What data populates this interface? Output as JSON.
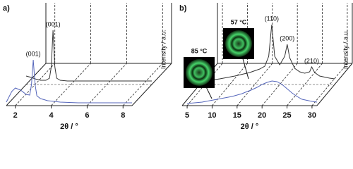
{
  "chart_data": [
    {
      "type": "line",
      "label": "a)",
      "xlabel": "2θ / °",
      "ylabel": "Intensity / a.u.",
      "xlim": [
        1.5,
        8.5
      ],
      "xticks": [
        2,
        4,
        6,
        8
      ],
      "ylim": [
        0,
        10
      ],
      "x": [
        1.5,
        1.8,
        2.0,
        2.3,
        2.6,
        2.8,
        2.9,
        3.0,
        3.1,
        3.2,
        3.4,
        3.8,
        4.5,
        5.5,
        6.5,
        7.5,
        8.5
      ],
      "series": [
        {
          "color": "#333333",
          "values": [
            1.2,
            1.0,
            0.8,
            0.6,
            0.6,
            0.9,
            2.5,
            7.7,
            2.5,
            0.9,
            0.6,
            0.5,
            0.5,
            0.5,
            0.5,
            0.5,
            0.5
          ],
          "annotations": [
            {
              "text": "(001)",
              "x": 3.0
            }
          ]
        },
        {
          "color": "#5566bb",
          "values": [
            0.5,
            2.0,
            2.5,
            2.2,
            1.6,
            1.5,
            3.0,
            6.5,
            3.0,
            1.4,
            1.0,
            0.7,
            0.5,
            0.4,
            0.4,
            0.4,
            0.4
          ],
          "annotations": [
            {
              "text": "(001)",
              "x": 3.0
            }
          ]
        }
      ]
    },
    {
      "type": "line",
      "label": "b)",
      "xlabel": "2θ / °",
      "ylabel": "Intensity / a.u.",
      "xlim": [
        4,
        31
      ],
      "xticks": [
        5,
        10,
        15,
        20,
        25,
        30
      ],
      "ylim": [
        0,
        10
      ],
      "x": [
        5,
        8,
        11,
        14,
        16,
        17,
        17.8,
        18.4,
        19,
        20,
        21,
        21.5,
        22,
        23,
        24,
        25,
        26,
        26.4,
        27,
        28,
        30,
        31
      ],
      "series": [
        {
          "color": "#333333",
          "values": [
            0.5,
            0.8,
            1.2,
            1.7,
            2.2,
            2.6,
            4.0,
            8.5,
            4.0,
            2.8,
            4.0,
            5.7,
            3.8,
            2.3,
            1.8,
            1.6,
            1.8,
            2.5,
            1.7,
            1.2,
            0.9,
            0.8
          ],
          "annotations": [
            {
              "text": "(110)",
              "x": 18.4
            },
            {
              "text": "(200)",
              "x": 21.5
            },
            {
              "text": "(210)",
              "x": 26.4
            }
          ]
        },
        {
          "color": "#5566bb",
          "values": [
            0.3,
            0.5,
            0.9,
            1.3,
            1.7,
            2.0,
            2.2,
            2.4,
            2.6,
            3.0,
            3.3,
            3.4,
            3.5,
            3.4,
            3.0,
            2.4,
            1.8,
            1.6,
            1.3,
            0.9,
            0.6,
            0.5
          ],
          "annotations": []
        }
      ],
      "insets": [
        "57 °C",
        "85 °C"
      ]
    }
  ]
}
